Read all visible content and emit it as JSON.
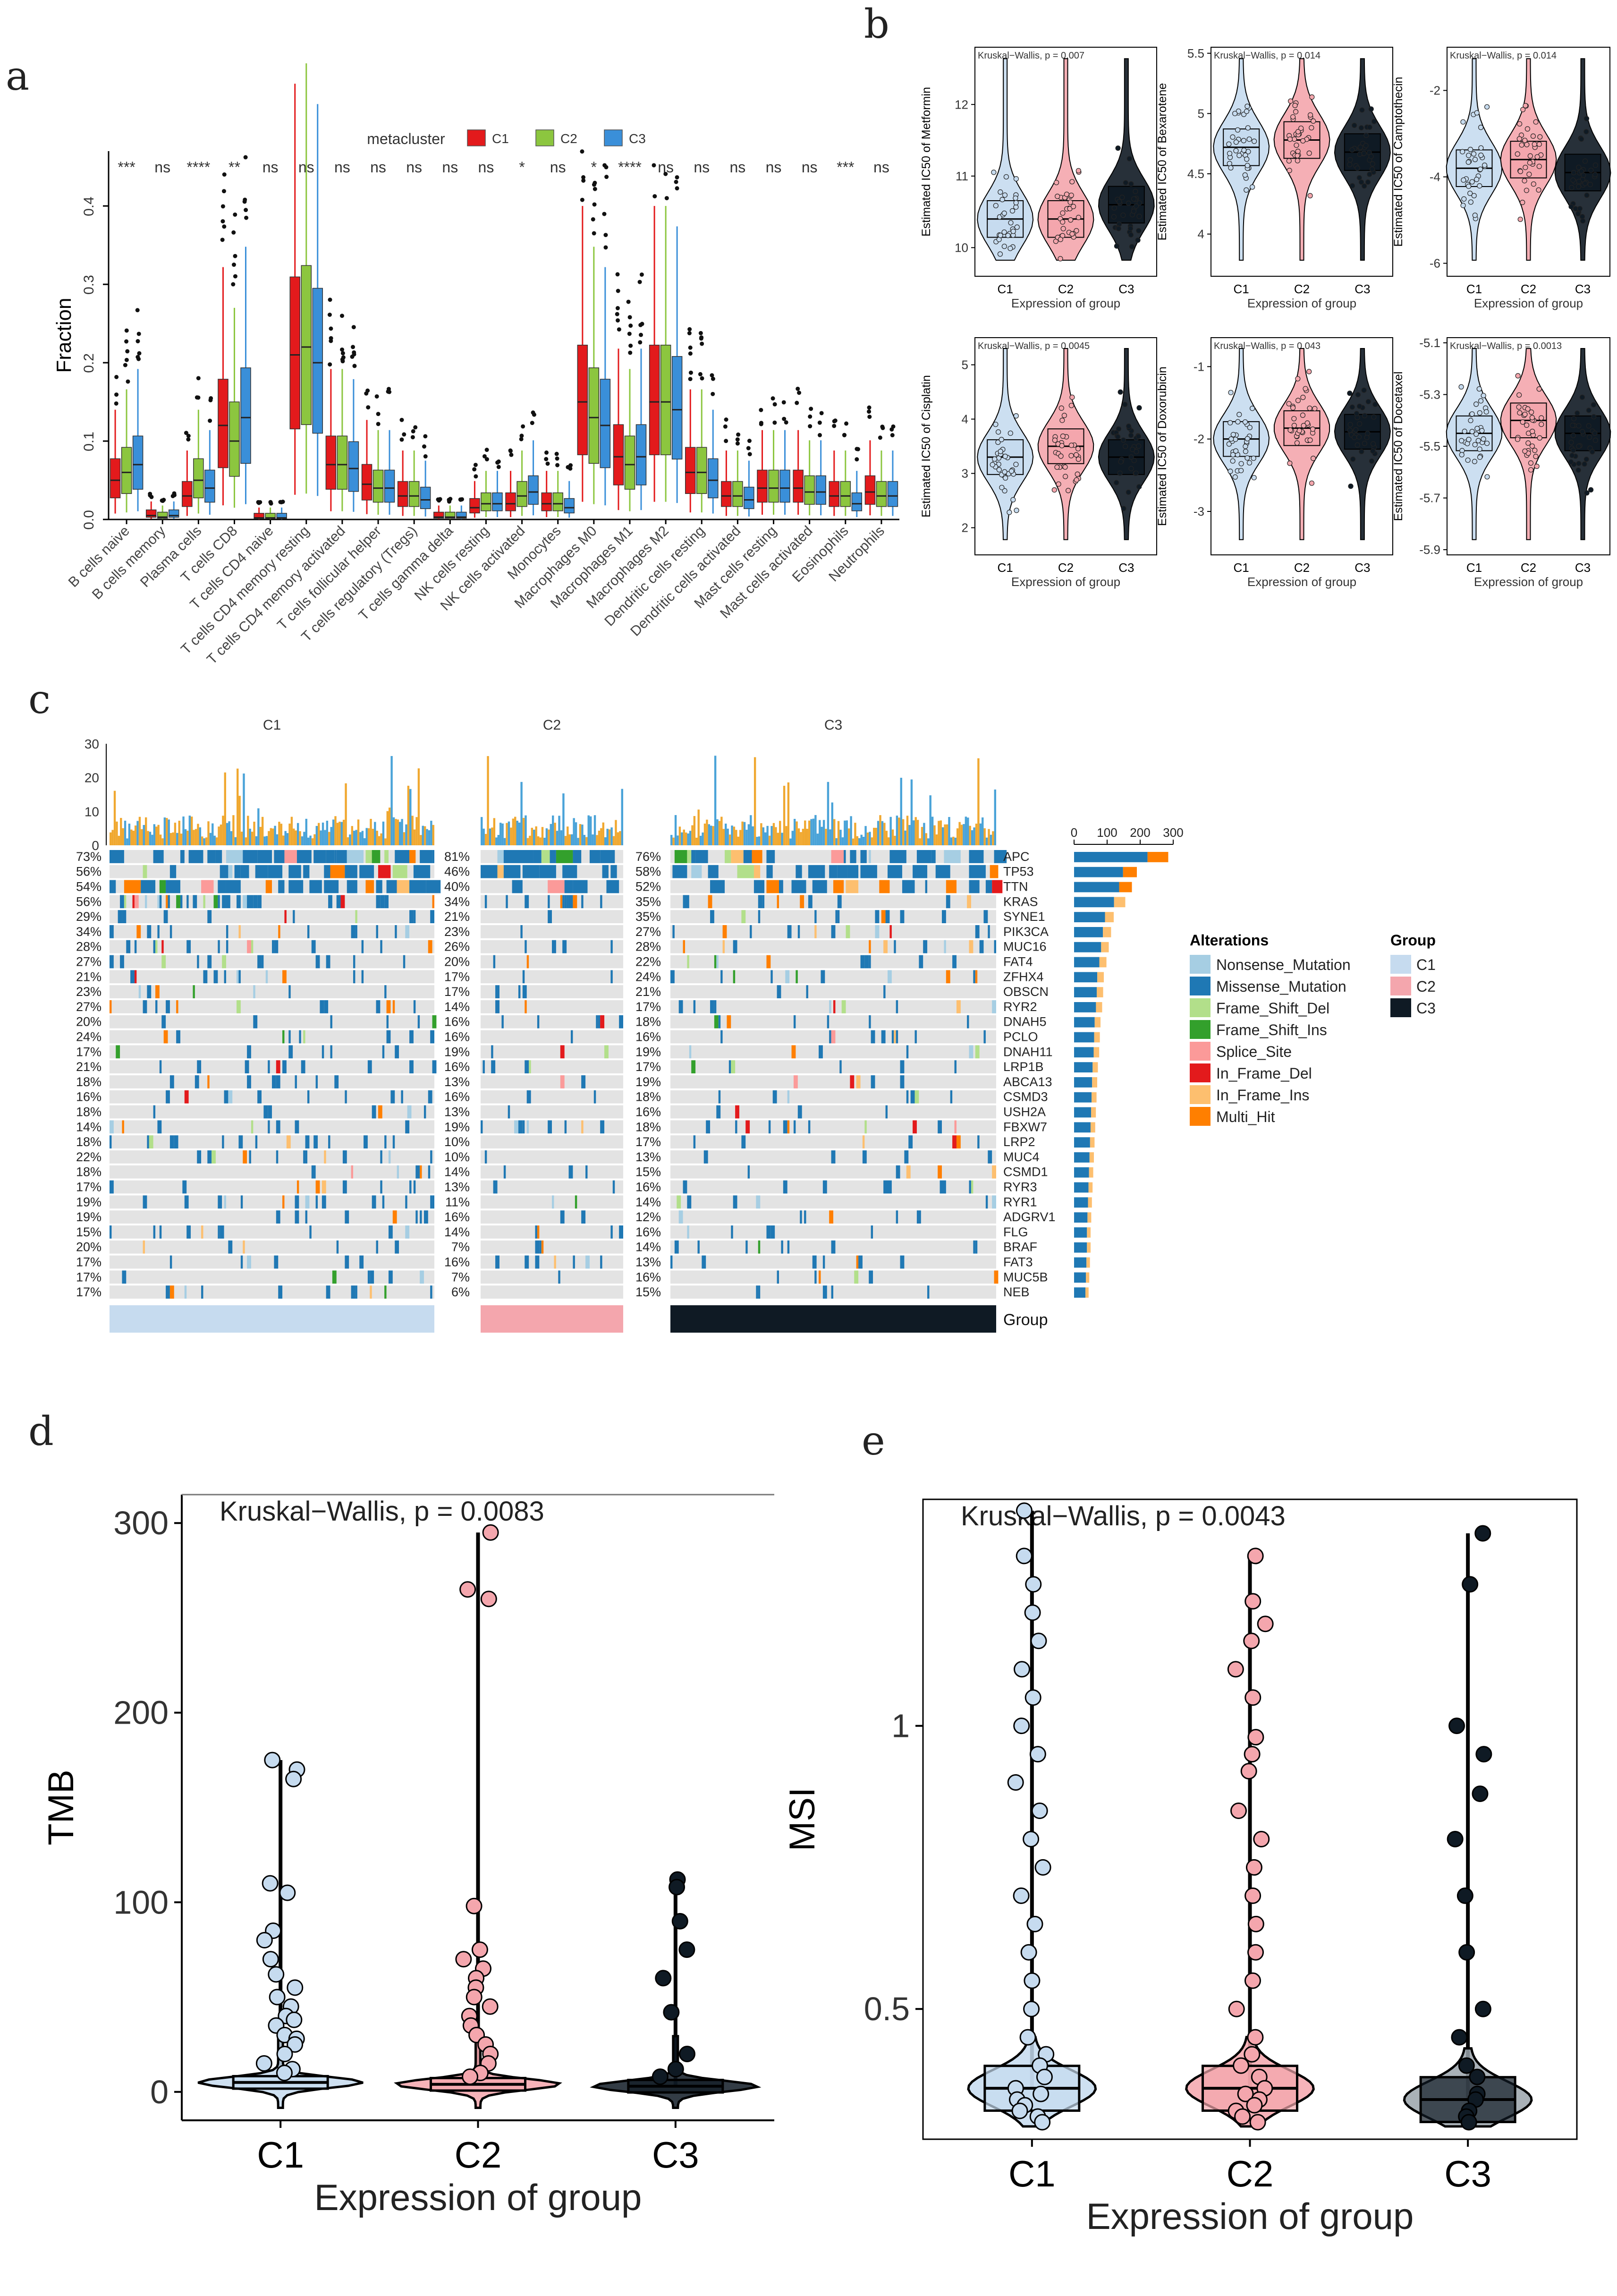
{
  "colors": {
    "C1": "#c6dbef",
    "C2": "#f4a6ad",
    "C3": "#0f1a24",
    "a_C1": "#e31a1c",
    "a_C2": "#8cc63f",
    "a_C3": "#3a8fd9",
    "axis": "#000000",
    "grid": "#888888"
  },
  "panel_labels": {
    "a": "a",
    "b": "b",
    "c": "c",
    "d": "d",
    "e": "e"
  },
  "chart_data": [
    {
      "id": "a",
      "type": "box",
      "ylabel": "Fraction",
      "ylim": [
        0,
        0.47
      ],
      "yticks": [
        "0.0",
        "0.1",
        "0.2",
        "0.3",
        "0.4"
      ],
      "legend": {
        "title": "metacluster",
        "entries": [
          "C1",
          "C2",
          "C3"
        ],
        "position": "top"
      },
      "categories": [
        "B cells naive",
        "B cells memory",
        "Plasma cells",
        "T cells CD8",
        "T cells CD4 naive",
        "T cells CD4 memory resting",
        "T cells CD4 memory activated",
        "T cells follicular helper",
        "T cells regulatory (Tregs)",
        "T cells gamma delta",
        "NK cells resting",
        "NK cells activated",
        "Monocytes",
        "Macrophages M0",
        "Macrophages M1",
        "Macrophages M2",
        "Dendritic cells resting",
        "Dendritic cells activated",
        "Mast cells resting",
        "Mast cells activated",
        "Eosinophils",
        "Neutrophils"
      ],
      "significance": [
        "***",
        "ns",
        "****",
        "**",
        "ns",
        "ns",
        "ns",
        "ns",
        "ns",
        "ns",
        "ns",
        "*",
        "ns",
        "*",
        "****",
        "ns",
        "ns",
        "ns",
        "ns",
        "ns",
        "***",
        "ns"
      ],
      "series": [
        {
          "name": "C1",
          "medians": [
            0.05,
            0.005,
            0.03,
            0.12,
            0.002,
            0.21,
            0.07,
            0.045,
            0.03,
            0.003,
            0.015,
            0.02,
            0.02,
            0.15,
            0.08,
            0.15,
            0.06,
            0.03,
            0.04,
            0.04,
            0.03,
            0.035
          ]
        },
        {
          "name": "C2",
          "medians": [
            0.06,
            0.003,
            0.05,
            0.1,
            0.002,
            0.22,
            0.07,
            0.04,
            0.03,
            0.003,
            0.02,
            0.03,
            0.02,
            0.13,
            0.07,
            0.15,
            0.06,
            0.03,
            0.04,
            0.035,
            0.03,
            0.03
          ]
        },
        {
          "name": "C3",
          "medians": [
            0.07,
            0.005,
            0.04,
            0.13,
            0.002,
            0.2,
            0.065,
            0.04,
            0.025,
            0.003,
            0.02,
            0.035,
            0.015,
            0.12,
            0.08,
            0.14,
            0.05,
            0.025,
            0.04,
            0.035,
            0.02,
            0.03
          ]
        }
      ]
    },
    {
      "id": "b",
      "type": "violin-box",
      "groups": [
        "C1",
        "C2",
        "C3"
      ],
      "xlabel": "Expression of group",
      "subplots": [
        {
          "drug": "Metformin",
          "ylabel": "Estimated IC50 of Metformin",
          "test": "Kruskal−Wallis, p = 0.007",
          "ylim": [
            9.6,
            12.8
          ],
          "yticks": [
            10,
            11,
            12
          ],
          "medians": [
            10.4,
            10.4,
            10.6
          ]
        },
        {
          "drug": "Bexarotene",
          "ylabel": "Estimated IC50 of Bexarotene",
          "test": "Kruskal−Wallis, p = 0.014",
          "ylim": [
            3.65,
            5.55
          ],
          "yticks": [
            4.0,
            4.5,
            5.0,
            5.5
          ],
          "medians": [
            4.72,
            4.78,
            4.68
          ]
        },
        {
          "drug": "Camptothecin",
          "ylabel": "Estimated IC50 of Camptothecin",
          "test": "Kruskal−Wallis, p = 0.014",
          "ylim": [
            -6.3,
            -1.0
          ],
          "yticks": [
            -6,
            -4,
            -2
          ],
          "medians": [
            -3.8,
            -3.6,
            -3.9
          ]
        },
        {
          "drug": "Cisplatin",
          "ylabel": "Estimated IC50 of Cisplatin",
          "test": "Kruskal−Wallis, p = 0.0045",
          "ylim": [
            1.5,
            5.5
          ],
          "yticks": [
            2,
            3,
            4,
            5
          ],
          "medians": [
            3.3,
            3.5,
            3.3
          ]
        },
        {
          "drug": "Doxorubicin",
          "ylabel": "Estimated IC50 of Doxorubicin",
          "test": "Kruskal−Wallis, p = 0.043",
          "ylim": [
            -3.6,
            -0.6
          ],
          "yticks": [
            -3,
            -2,
            -1
          ],
          "medians": [
            -2.0,
            -1.85,
            -1.9
          ]
        },
        {
          "drug": "Docetaxel",
          "ylabel": "Estimated IC50 of Docetaxel",
          "test": "Kruskal−Wallis, p = 0.0013",
          "ylim": [
            -5.92,
            -5.08
          ],
          "yticks": [
            -5.9,
            -5.7,
            -5.5,
            -5.3,
            -5.1
          ],
          "medians": [
            -5.45,
            -5.4,
            -5.45
          ]
        }
      ]
    },
    {
      "id": "c",
      "type": "oncoplot",
      "group_titles": [
        "C1",
        "C2",
        "C3"
      ],
      "tmb_ticks": [
        "0",
        "10",
        "20",
        "30"
      ],
      "bar_ticks": [
        "0",
        "100",
        "200",
        "300"
      ],
      "group_row_label": "Group",
      "genes": [
        "APC",
        "TP53",
        "TTN",
        "KRAS",
        "SYNE1",
        "PIK3CA",
        "MUC16",
        "FAT4",
        "ZFHX4",
        "OBSCN",
        "RYR2",
        "DNAH5",
        "PCLO",
        "DNAH11",
        "LRP1B",
        "ABCA13",
        "CSMD3",
        "USH2A",
        "FBXW7",
        "LRP2",
        "MUC4",
        "CSMD1",
        "RYR3",
        "RYR1",
        "ADGRV1",
        "FLG",
        "BRAF",
        "FAT3",
        "MUC5B",
        "NEB"
      ],
      "pct_C1": [
        "73%",
        "56%",
        "54%",
        "56%",
        "29%",
        "34%",
        "28%",
        "27%",
        "21%",
        "23%",
        "27%",
        "20%",
        "24%",
        "17%",
        "21%",
        "18%",
        "16%",
        "18%",
        "14%",
        "18%",
        "22%",
        "18%",
        "17%",
        "19%",
        "19%",
        "15%",
        "20%",
        "17%",
        "17%",
        "17%"
      ],
      "pct_C2": [
        "81%",
        "46%",
        "40%",
        "34%",
        "21%",
        "23%",
        "26%",
        "20%",
        "17%",
        "17%",
        "14%",
        "16%",
        "16%",
        "19%",
        "16%",
        "13%",
        "16%",
        "13%",
        "19%",
        "10%",
        "10%",
        "14%",
        "13%",
        "11%",
        "16%",
        "14%",
        "7%",
        "16%",
        "7%",
        "6%"
      ],
      "pct_C3": [
        "76%",
        "58%",
        "52%",
        "35%",
        "35%",
        "27%",
        "28%",
        "22%",
        "24%",
        "21%",
        "17%",
        "18%",
        "16%",
        "19%",
        "17%",
        "19%",
        "18%",
        "16%",
        "18%",
        "17%",
        "13%",
        "15%",
        "16%",
        "14%",
        "12%",
        "16%",
        "14%",
        "13%",
        "16%",
        "15%"
      ],
      "counts": [
        285,
        190,
        175,
        155,
        120,
        112,
        105,
        98,
        90,
        88,
        85,
        80,
        78,
        76,
        72,
        70,
        68,
        66,
        64,
        62,
        60,
        58,
        56,
        54,
        52,
        50,
        50,
        48,
        46,
        44
      ],
      "alterations_title": "Alterations",
      "alterations": [
        {
          "name": "Nonsense_Mutation",
          "color": "#a6cee3"
        },
        {
          "name": "Missense_Mutation",
          "color": "#1f78b4"
        },
        {
          "name": "Frame_Shift_Del",
          "color": "#b2df8a"
        },
        {
          "name": "Frame_Shift_Ins",
          "color": "#33a02c"
        },
        {
          "name": "Splice_Site",
          "color": "#fb9a99"
        },
        {
          "name": "In_Frame_Del",
          "color": "#e31a1c"
        },
        {
          "name": "In_Frame_Ins",
          "color": "#fdbf6f"
        },
        {
          "name": "Multi_Hit",
          "color": "#ff7f00"
        }
      ],
      "group_legend_title": "Group",
      "group_legend": [
        "C1",
        "C2",
        "C3"
      ]
    },
    {
      "id": "d",
      "type": "violin-box",
      "ylabel": "TMB",
      "xlabel": "Expression of group",
      "test": "Kruskal−Wallis, p = 0.0083",
      "groups": [
        "C1",
        "C2",
        "C3"
      ],
      "ylim": [
        -15,
        315
      ],
      "yticks": [
        0,
        100,
        200,
        300
      ],
      "medians": [
        5,
        4,
        3
      ],
      "max": [
        175,
        295,
        112
      ],
      "points": [
        [
          175,
          170,
          165,
          110,
          105,
          85,
          80,
          70,
          62,
          55,
          50,
          45,
          40,
          38,
          35,
          30,
          28,
          25,
          20,
          15,
          12,
          10
        ],
        [
          295,
          265,
          260,
          98,
          75,
          70,
          65,
          60,
          55,
          50,
          45,
          40,
          35,
          30,
          25,
          20,
          15,
          10,
          8
        ],
        [
          112,
          108,
          90,
          75,
          60,
          42,
          20,
          12,
          8
        ]
      ]
    },
    {
      "id": "e",
      "type": "violin-box",
      "ylabel": "MSI",
      "xlabel": "Expression of group",
      "test": "Kruskal−Wallis, p = 0.0043",
      "groups": [
        "C1",
        "C2",
        "C3"
      ],
      "ylim": [
        0.27,
        1.4
      ],
      "yticks": [
        0.5,
        1.0
      ],
      "medians": [
        0.36,
        0.36,
        0.34
      ],
      "max": [
        1.38,
        1.3,
        1.34
      ],
      "points": [
        [
          1.38,
          1.3,
          1.25,
          1.2,
          1.15,
          1.1,
          1.05,
          1.0,
          0.95,
          0.9,
          0.85,
          0.8,
          0.75,
          0.7,
          0.65,
          0.6,
          0.55,
          0.5,
          0.45,
          0.42,
          0.4,
          0.38,
          0.36,
          0.35,
          0.34,
          0.33,
          0.32,
          0.31,
          0.3
        ],
        [
          1.3,
          1.22,
          1.18,
          1.15,
          1.1,
          1.05,
          0.98,
          0.95,
          0.92,
          0.85,
          0.8,
          0.75,
          0.7,
          0.65,
          0.6,
          0.55,
          0.5,
          0.45,
          0.42,
          0.4,
          0.38,
          0.36,
          0.35,
          0.34,
          0.33,
          0.32,
          0.31,
          0.3
        ],
        [
          1.34,
          1.25,
          1.0,
          0.95,
          0.88,
          0.8,
          0.7,
          0.6,
          0.5,
          0.45,
          0.4,
          0.38,
          0.35,
          0.34,
          0.32,
          0.31,
          0.3
        ]
      ]
    }
  ]
}
